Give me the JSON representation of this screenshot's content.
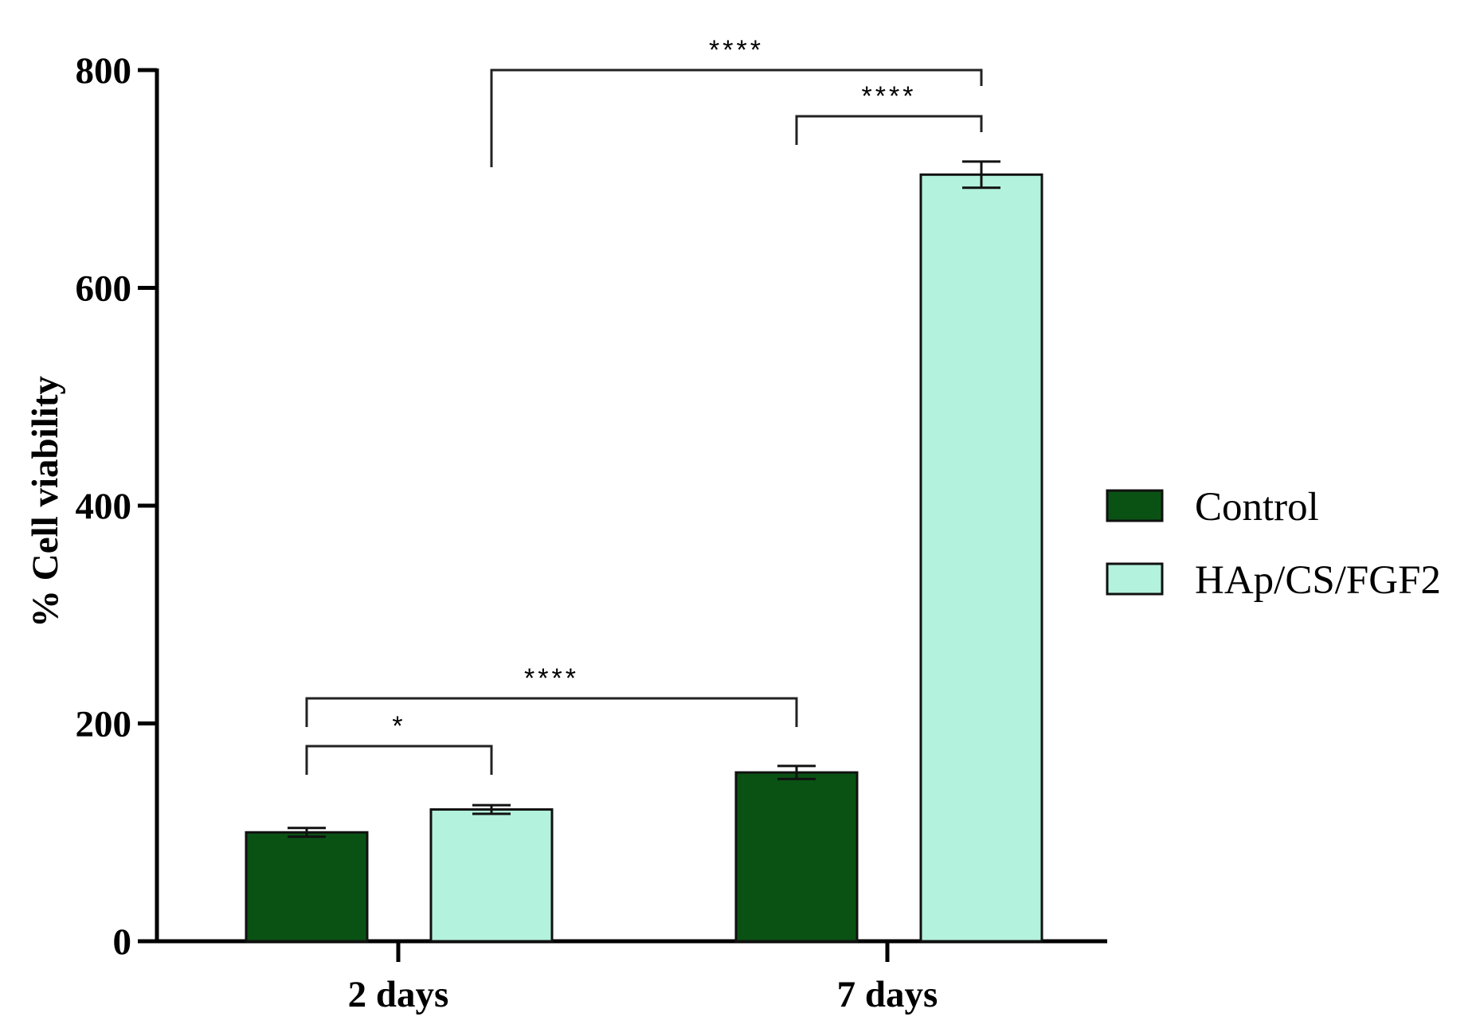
{
  "chart_data": {
    "type": "bar",
    "title": "",
    "xlabel": "",
    "ylabel": "% Cell viability",
    "ylim": [
      0,
      800
    ],
    "yticks": [
      0,
      200,
      400,
      600,
      800
    ],
    "categories": [
      "2 days",
      "7 days"
    ],
    "series": [
      {
        "name": "Control",
        "color": "#0a5214",
        "values": [
          100,
          155
        ],
        "errors": [
          4,
          6
        ]
      },
      {
        "name": "HAp/CS/FGF2",
        "color": "#b3f2dc",
        "values": [
          121,
          704
        ],
        "errors": [
          4,
          12
        ]
      }
    ],
    "legend_position": "right",
    "grid": false,
    "significance": [
      {
        "from": [
          0,
          1
        ],
        "to": [
          1,
          1
        ],
        "label": "****"
      },
      {
        "from": [
          1,
          0
        ],
        "to": [
          1,
          1
        ],
        "label": "****"
      },
      {
        "from": [
          0,
          0
        ],
        "to": [
          1,
          0
        ],
        "label": "****"
      },
      {
        "from": [
          0,
          0
        ],
        "to": [
          0,
          1
        ],
        "label": "*"
      }
    ]
  }
}
